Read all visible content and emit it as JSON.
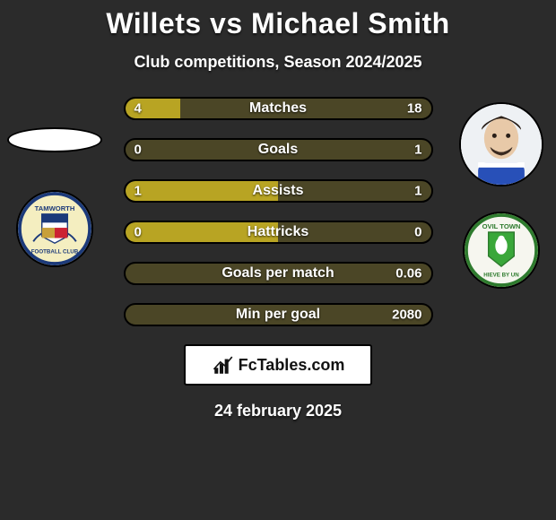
{
  "colors": {
    "background": "#2b2b2b",
    "bar_track": "#4b4626",
    "p1_accent": "#b8a423",
    "p2_accent": "#b8a423",
    "text": "#ffffff",
    "logo_bg": "#ffffff",
    "logo_text": "#111111",
    "border": "#000000"
  },
  "header": {
    "player1_name": "Willets",
    "vs": "vs",
    "player2_name": "Michael Smith",
    "subtitle": "Club competitions, Season 2024/2025"
  },
  "stats": [
    {
      "label": "Matches",
      "p1": "4",
      "p2": "18",
      "p1_pct": 18,
      "p2_pct": 82
    },
    {
      "label": "Goals",
      "p1": "0",
      "p2": "1",
      "p1_pct": 0,
      "p2_pct": 100
    },
    {
      "label": "Assists",
      "p1": "1",
      "p2": "1",
      "p1_pct": 50,
      "p2_pct": 50
    },
    {
      "label": "Hattricks",
      "p1": "0",
      "p2": "0",
      "p1_pct": 50,
      "p2_pct": 50
    },
    {
      "label": "Goals per match",
      "p1": "",
      "p2": "0.06",
      "p1_pct": 0,
      "p2_pct": 100
    },
    {
      "label": "Min per goal",
      "p1": "",
      "p2": "2080",
      "p1_pct": 0,
      "p2_pct": 100
    }
  ],
  "branding": {
    "site": "FcTables.com"
  },
  "date": "24 february 2025"
}
